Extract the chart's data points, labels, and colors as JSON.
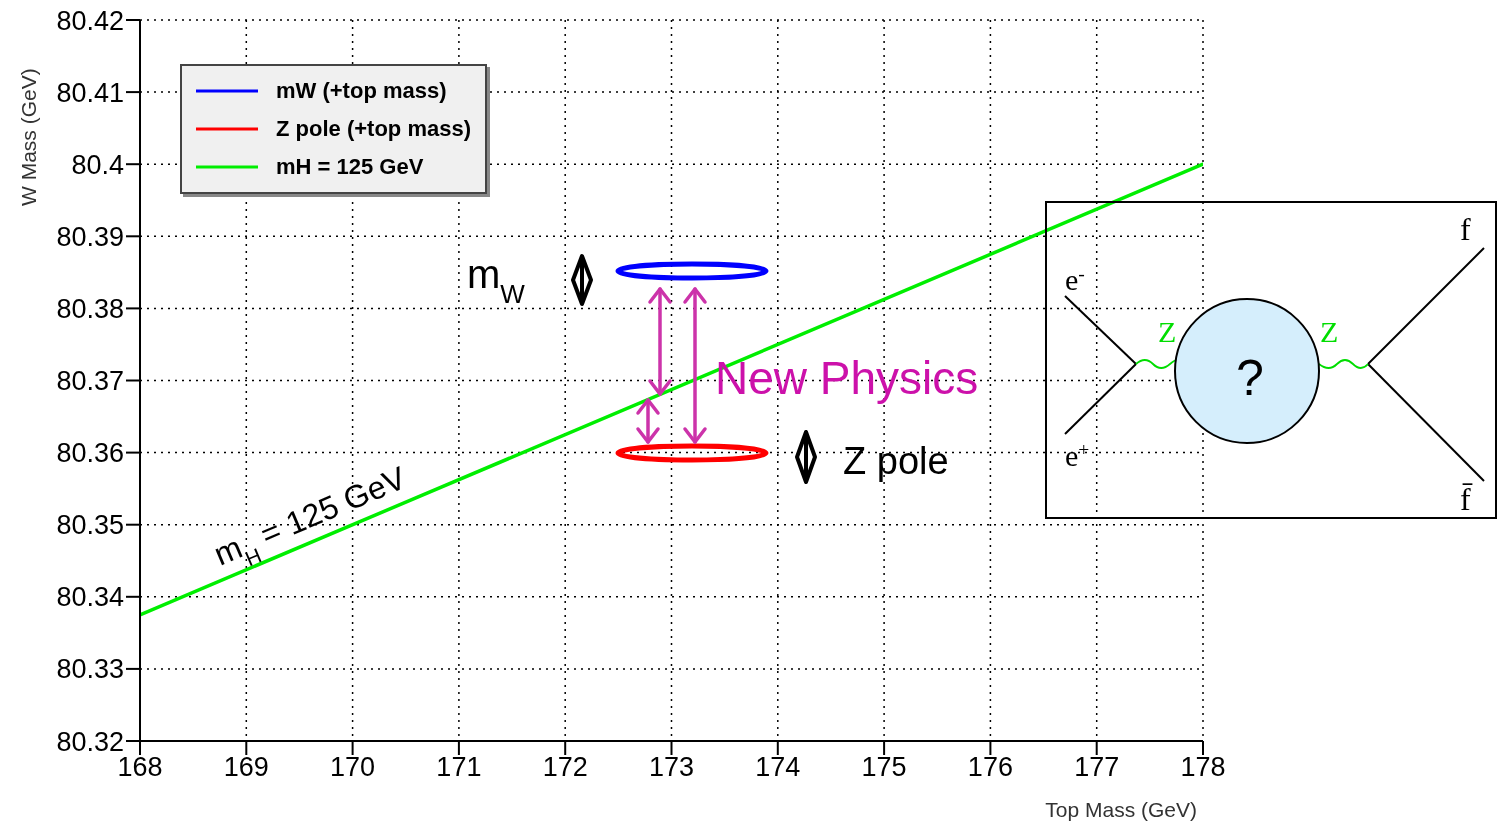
{
  "chart_data": {
    "type": "line",
    "xlabel": "Top Mass (GeV)",
    "ylabel": "W Mass (GeV)",
    "xlim": [
      168,
      178
    ],
    "xticks": [
      168,
      169,
      170,
      171,
      172,
      173,
      174,
      175,
      176,
      177,
      178
    ],
    "ylim": [
      80.32,
      80.42
    ],
    "yticks": [
      80.32,
      80.33,
      80.34,
      80.35,
      80.36,
      80.37,
      80.38,
      80.39,
      80.4,
      80.41,
      80.42
    ],
    "grid": true,
    "legend": "top left",
    "marker": "none",
    "line_style": "solid",
    "series": [
      {
        "name": "mH = 125 GeV",
        "color": "#00ee00",
        "x": [
          168,
          178
        ],
        "values": [
          80.3375,
          80.4
        ]
      }
    ],
    "annotations": [
      "m$_{W}$",
      "Z pole",
      "New Physics",
      "m$_{H}$ = 125 GeV",
      "e$^{-}$",
      "e$^{+}$",
      "Z",
      "Z",
      "?",
      "f",
      "f̄",
      "mW (+top mass)",
      "Z pole (+top mass)"
    ]
  }
}
